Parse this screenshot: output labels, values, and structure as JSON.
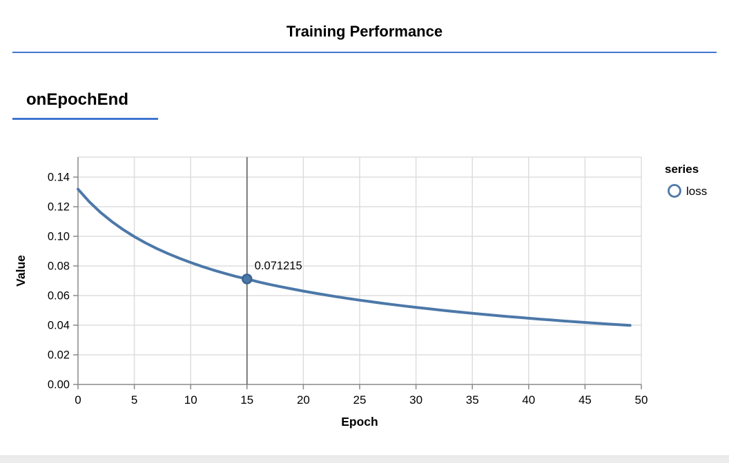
{
  "header": {
    "title": "Training Performance"
  },
  "section": {
    "heading": "onEpochEnd"
  },
  "colors": {
    "accent_blue": "#3f76d0",
    "line": "#4c78a8",
    "marker_stroke": "#3a6391",
    "grid": "#dddddd",
    "axis": "#888888",
    "text": "#000000",
    "rule": "#555555",
    "bottom_bar": "#ececec"
  },
  "chart_data": {
    "type": "line",
    "title": "",
    "xlabel": "Epoch",
    "ylabel": "Value",
    "legend_title": "series",
    "legend_position": "right",
    "grid": true,
    "xlim": [
      0,
      50
    ],
    "ylim": [
      0,
      0.1535
    ],
    "x_ticks": [
      0,
      5,
      10,
      15,
      20,
      25,
      30,
      35,
      40,
      45,
      50
    ],
    "x_tick_labels": [
      "0",
      "5",
      "10",
      "15",
      "20",
      "25",
      "30",
      "35",
      "40",
      "45",
      "50"
    ],
    "y_ticks": [
      0,
      0.02,
      0.04,
      0.06,
      0.08,
      0.1,
      0.12,
      0.14
    ],
    "y_tick_labels": [
      "0.00",
      "0.02",
      "0.04",
      "0.06",
      "0.08",
      "0.10",
      "0.12",
      "0.14"
    ],
    "series": [
      {
        "name": "loss",
        "color": "#4c78a8",
        "x": [
          0,
          1,
          2,
          3,
          4,
          5,
          6,
          7,
          8,
          9,
          10,
          11,
          12,
          13,
          14,
          15,
          16,
          17,
          18,
          19,
          20,
          21,
          22,
          23,
          24,
          25,
          26,
          27,
          28,
          29,
          30,
          31,
          32,
          33,
          34,
          35,
          36,
          37,
          38,
          39,
          40,
          41,
          42,
          43,
          44,
          45,
          46,
          47,
          48,
          49
        ],
        "values": [
          0.13181,
          0.12336,
          0.11616,
          0.10997,
          0.10456,
          0.09979,
          0.09555,
          0.09174,
          0.0883,
          0.08517,
          0.08231,
          0.07969,
          0.07726,
          0.07501,
          0.07292,
          0.071215,
          0.06925,
          0.06756,
          0.06596,
          0.06446,
          0.06304,
          0.06169,
          0.06041,
          0.05919,
          0.05802,
          0.05691,
          0.05586,
          0.05484,
          0.05387,
          0.05294,
          0.05205,
          0.05119,
          0.05036,
          0.04956,
          0.0488,
          0.04806,
          0.04734,
          0.04665,
          0.04598,
          0.04533,
          0.04471,
          0.0441,
          0.04352,
          0.04294,
          0.04239,
          0.04185,
          0.04133,
          0.04082,
          0.04033,
          0.03985
        ]
      }
    ],
    "highlight": {
      "epoch": 15,
      "value": 0.071215,
      "label": "0.071215"
    }
  }
}
